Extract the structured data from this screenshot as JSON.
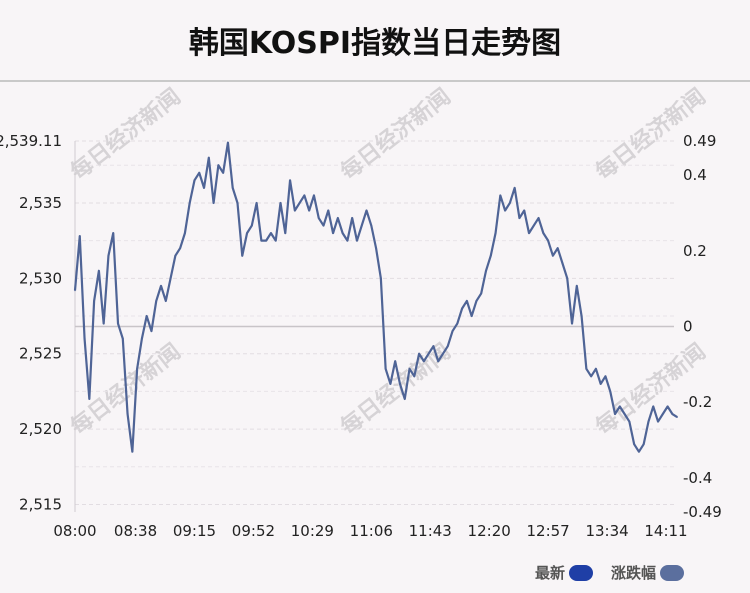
{
  "header": {
    "title": "韩国KOSPI指数当日走势图"
  },
  "watermark": {
    "text": "每日经济新闻"
  },
  "legend": {
    "items": [
      {
        "label": "最新",
        "color": "#1f3fa6"
      },
      {
        "label": "涨跌幅",
        "color": "#5b6f9e"
      }
    ]
  },
  "chart_data": {
    "type": "line",
    "title": "韩国KOSPI指数当日走势图",
    "x_ticks": [
      "08:00",
      "08:38",
      "09:15",
      "09:52",
      "10:29",
      "11:06",
      "11:43",
      "12:20",
      "12:57",
      "13:34",
      "14:11"
    ],
    "y_left_ticks": [
      "2,539.11",
      "2,535",
      "2,530",
      "2,525",
      "2,520",
      "2,515"
    ],
    "y_left_values": [
      2539.11,
      2535,
      2530,
      2525,
      2520,
      2515
    ],
    "y_right_ticks": [
      "0.49",
      "0.4",
      "0.2",
      "0",
      "-0.2",
      "-0.4",
      "-0.49"
    ],
    "y_right_values": [
      0.49,
      0.4,
      0.2,
      0,
      -0.2,
      -0.4,
      -0.49
    ],
    "ylim": [
      2514.5,
      2539.11
    ],
    "grid": true,
    "line_color": "#4f6496",
    "series": [
      {
        "name": "最新",
        "x": [
          "08:00",
          "08:03",
          "08:06",
          "08:09",
          "08:12",
          "08:15",
          "08:18",
          "08:21",
          "08:24",
          "08:27",
          "08:30",
          "08:33",
          "08:36",
          "08:39",
          "08:42",
          "08:45",
          "08:48",
          "08:51",
          "08:54",
          "08:57",
          "09:00",
          "09:03",
          "09:06",
          "09:09",
          "09:12",
          "09:15",
          "09:18",
          "09:21",
          "09:24",
          "09:27",
          "09:30",
          "09:33",
          "09:36",
          "09:39",
          "09:42",
          "09:45",
          "09:48",
          "09:51",
          "09:54",
          "09:57",
          "10:00",
          "10:03",
          "10:06",
          "10:09",
          "10:12",
          "10:15",
          "10:18",
          "10:21",
          "10:24",
          "10:27",
          "10:30",
          "10:33",
          "10:36",
          "10:39",
          "10:42",
          "10:45",
          "10:48",
          "10:51",
          "10:54",
          "10:57",
          "11:00",
          "11:03",
          "11:06",
          "11:09",
          "11:12",
          "11:15",
          "11:18",
          "11:21",
          "11:24",
          "11:27",
          "11:30",
          "11:33",
          "11:36",
          "11:39",
          "11:42",
          "11:45",
          "11:48",
          "11:51",
          "11:54",
          "11:57",
          "12:00",
          "12:03",
          "12:06",
          "12:09",
          "12:12",
          "12:15",
          "12:18",
          "12:21",
          "12:24",
          "12:27",
          "12:30",
          "12:33",
          "12:36",
          "12:39",
          "12:42",
          "12:45",
          "12:48",
          "12:51",
          "12:54",
          "12:57",
          "13:00",
          "13:03",
          "13:06",
          "13:09",
          "13:12",
          "13:15",
          "13:18",
          "13:21",
          "13:24",
          "13:27",
          "13:30",
          "13:33",
          "13:36",
          "13:39",
          "13:42",
          "13:45",
          "13:48",
          "13:51",
          "13:54",
          "13:57",
          "14:00",
          "14:03",
          "14:06",
          "14:09",
          "14:12",
          "14:15",
          "14:18"
        ],
        "values": [
          2529.2,
          2532.8,
          2526.0,
          2522.0,
          2528.5,
          2530.5,
          2527.0,
          2531.5,
          2533.0,
          2527.0,
          2526.0,
          2521.0,
          2518.5,
          2524.0,
          2526.0,
          2527.5,
          2526.5,
          2528.5,
          2529.5,
          2528.5,
          2530.0,
          2531.5,
          2532.0,
          2533.0,
          2535.0,
          2536.5,
          2537.0,
          2536.0,
          2538.0,
          2535.0,
          2537.5,
          2537.0,
          2539.0,
          2536.0,
          2535.0,
          2531.5,
          2533.0,
          2533.5,
          2535.0,
          2532.5,
          2532.5,
          2533.0,
          2532.5,
          2535.0,
          2533.0,
          2536.5,
          2534.5,
          2535.0,
          2535.5,
          2534.5,
          2535.5,
          2534.0,
          2533.5,
          2534.5,
          2533.0,
          2534.0,
          2533.0,
          2532.5,
          2534.0,
          2532.5,
          2533.5,
          2534.5,
          2533.5,
          2532.0,
          2530.0,
          2524.0,
          2523.0,
          2524.5,
          2523.0,
          2522.0,
          2524.0,
          2523.5,
          2525.0,
          2524.5,
          2525.0,
          2525.5,
          2524.5,
          2525.0,
          2525.5,
          2526.5,
          2527.0,
          2528.0,
          2528.5,
          2527.5,
          2528.5,
          2529.0,
          2530.5,
          2531.5,
          2533.0,
          2535.5,
          2534.5,
          2535.0,
          2536.0,
          2534.0,
          2534.5,
          2533.0,
          2533.5,
          2534.0,
          2533.0,
          2532.5,
          2531.5,
          2532.0,
          2531.0,
          2530.0,
          2527.0,
          2529.5,
          2527.5,
          2524.0,
          2523.5,
          2524.0,
          2523.0,
          2523.5,
          2522.5,
          2521.0,
          2521.5,
          2521.0,
          2520.5,
          2519.0,
          2518.5,
          2519.0,
          2520.5,
          2521.5,
          2520.5,
          2521.0,
          2521.5,
          2521.0,
          2520.8
        ]
      }
    ]
  }
}
